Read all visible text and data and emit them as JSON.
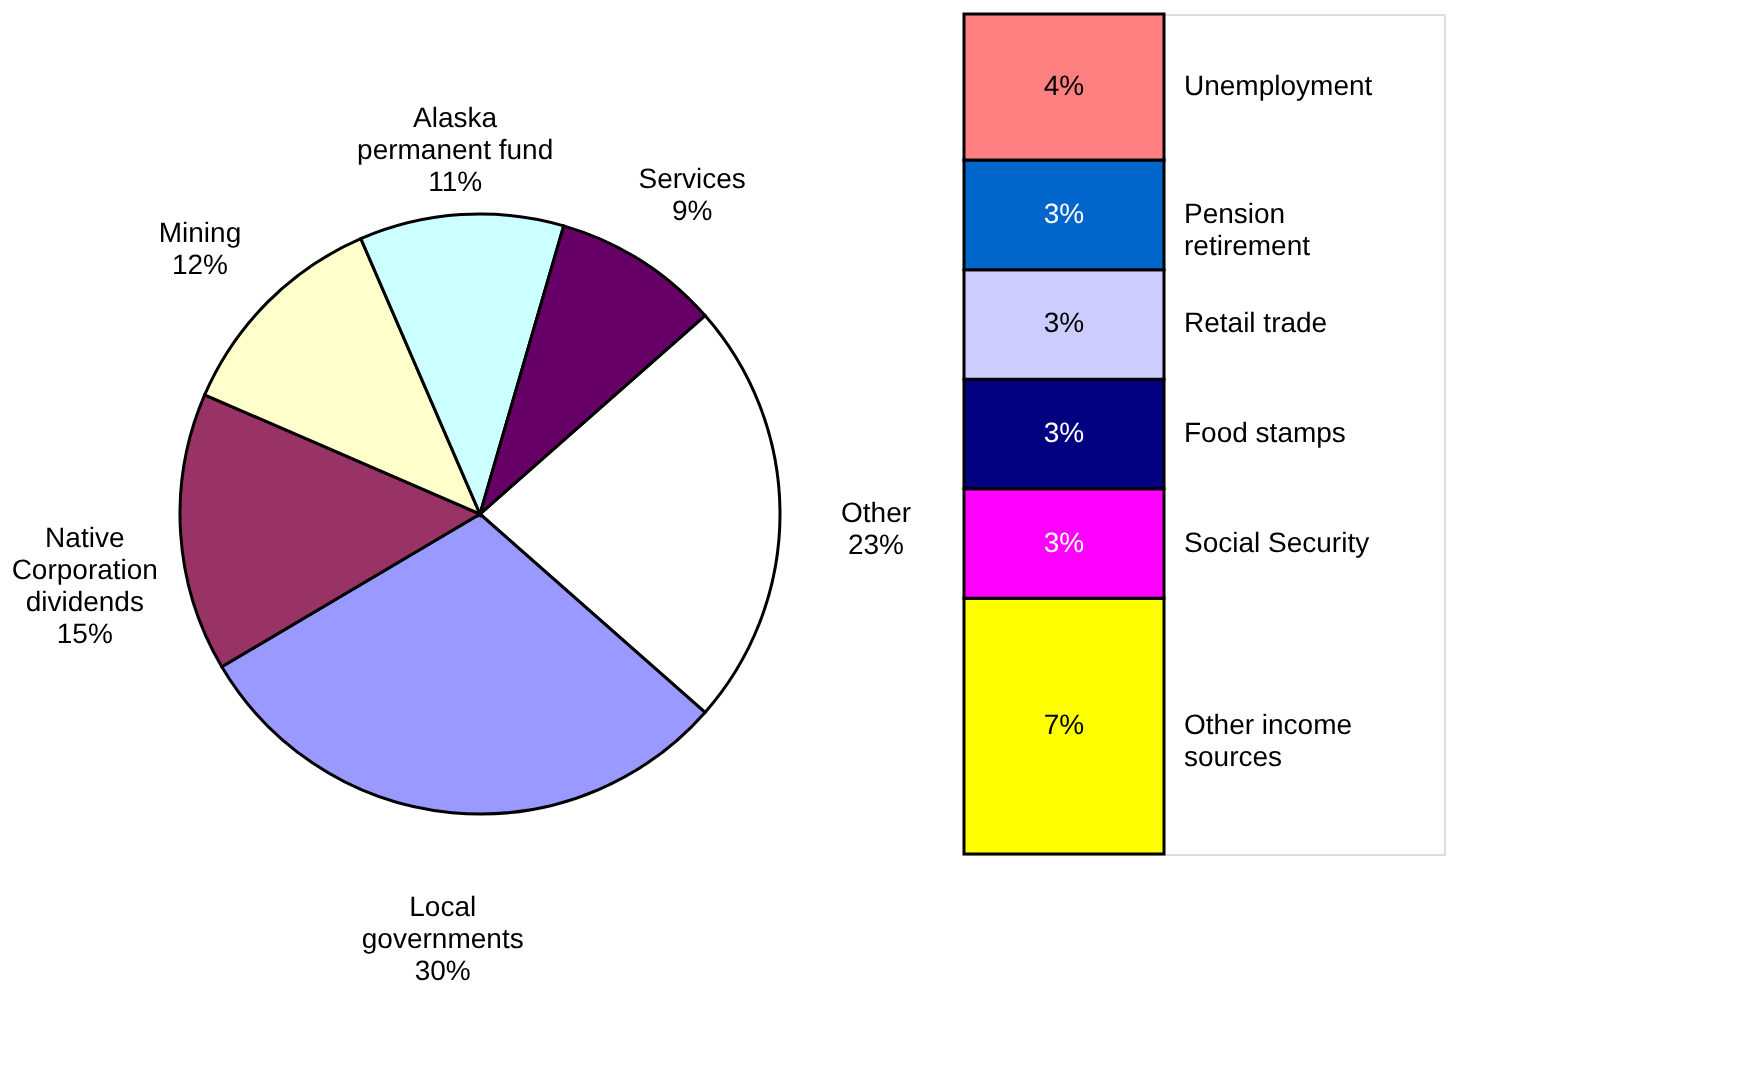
{
  "chart_data": [
    {
      "type": "pie",
      "categories": [
        "Other",
        "Local governments",
        "Native Corporation dividends",
        "Mining",
        "Alaska permanent fund",
        "Services"
      ],
      "values": [
        23,
        30,
        15,
        12,
        11,
        9
      ],
      "colors": [
        "#ffffff",
        "#9999ff",
        "#993366",
        "#ffffcc",
        "#ccffff",
        "#660066"
      ],
      "value_labels": [
        "23%",
        "30%",
        "15%",
        "12%",
        "11%",
        "9%"
      ]
    },
    {
      "type": "bar",
      "stacked": true,
      "categories": [
        null
      ],
      "series": [
        {
          "name": "Other income sources",
          "color": "#ffff00",
          "values": [
            7
          ],
          "value_labels": [
            "7%"
          ]
        },
        {
          "name": "Social Security",
          "color": "#ff00ff",
          "values": [
            3
          ],
          "value_labels": [
            "3%"
          ]
        },
        {
          "name": "Food stamps",
          "color": "#000080",
          "values": [
            3
          ],
          "value_labels": [
            "3%"
          ]
        },
        {
          "name": "Retail trade",
          "color": "#ccccff",
          "values": [
            3
          ],
          "value_labels": [
            "3%"
          ]
        },
        {
          "name": "Pension retirement",
          "color": "#0066cc",
          "values": [
            3
          ],
          "value_labels": [
            "3%"
          ]
        },
        {
          "name": "Unemployment",
          "color": "#ff8080",
          "values": [
            4
          ],
          "value_labels": [
            "4%"
          ]
        }
      ]
    }
  ]
}
